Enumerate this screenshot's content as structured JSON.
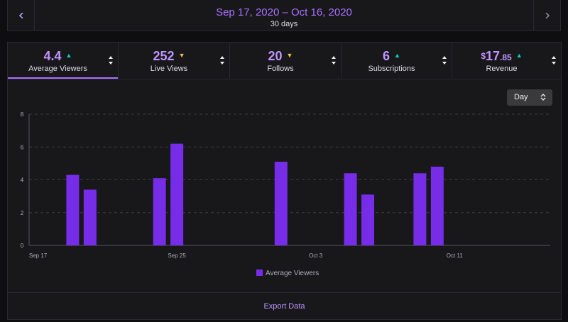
{
  "header": {
    "prev_icon": "chevron-left-icon",
    "next_icon": "chevron-right-icon",
    "date_range": "Sep 17, 2020 – Oct 16, 2020",
    "period": "30 days"
  },
  "metrics": [
    {
      "value": "4.4",
      "label": "Average Viewers",
      "trend": "up",
      "active": true
    },
    {
      "value": "252",
      "label": "Live Views",
      "trend": "neutral",
      "active": false
    },
    {
      "value": "20",
      "label": "Follows",
      "trend": "neutral",
      "active": false
    },
    {
      "value": "6",
      "label": "Subscriptions",
      "trend": "up",
      "active": false
    },
    {
      "value_symbol": "$",
      "value_main": "17",
      "value_cents": ".85",
      "label": "Revenue",
      "trend": "up",
      "active": false
    }
  ],
  "granularity": {
    "selected": "Day"
  },
  "colors": {
    "accent": "#a970ff",
    "bar": "#772ce8",
    "trend_up": "#00d6b5",
    "trend_neutral": "#e8c14a"
  },
  "chart_data": {
    "type": "bar",
    "title": "",
    "xlabel": "",
    "ylabel": "",
    "ylim": [
      0,
      8
    ],
    "yticks": [
      0,
      2,
      4,
      6,
      8
    ],
    "x_tick_labels": [
      {
        "day_index": 0,
        "label": "Sep 17"
      },
      {
        "day_index": 8,
        "label": "Sep 25"
      },
      {
        "day_index": 16,
        "label": "Oct 3"
      },
      {
        "day_index": 24,
        "label": "Oct 11"
      }
    ],
    "days": 30,
    "series": [
      {
        "name": "Average Viewers",
        "points": [
          {
            "day_index": 2,
            "date": "Sep 19",
            "value": 4.3
          },
          {
            "day_index": 3,
            "date": "Sep 20",
            "value": 3.4
          },
          {
            "day_index": 7,
            "date": "Sep 24",
            "value": 4.1
          },
          {
            "day_index": 8,
            "date": "Sep 25",
            "value": 6.2
          },
          {
            "day_index": 14,
            "date": "Oct 1",
            "value": 5.1
          },
          {
            "day_index": 18,
            "date": "Oct 5",
            "value": 4.4
          },
          {
            "day_index": 19,
            "date": "Oct 6",
            "value": 3.1
          },
          {
            "day_index": 22,
            "date": "Oct 9",
            "value": 4.4
          },
          {
            "day_index": 23,
            "date": "Oct 10",
            "value": 4.8
          }
        ]
      }
    ],
    "legend": "bottom-center",
    "grid": true
  },
  "footer": {
    "export_label": "Export Data"
  }
}
